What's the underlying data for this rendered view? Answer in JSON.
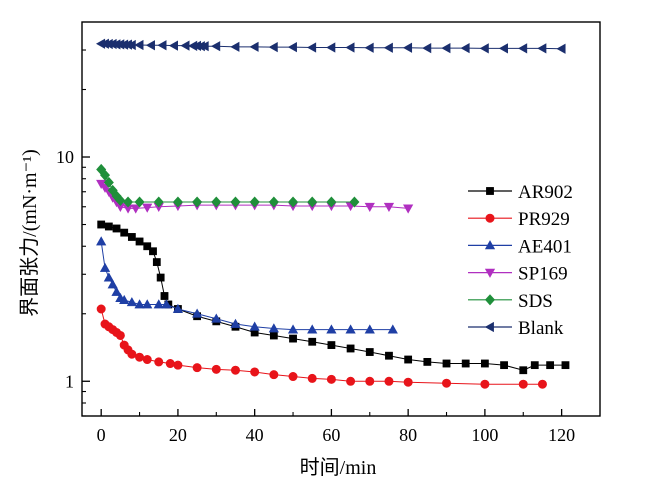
{
  "chart_data": {
    "type": "scatter",
    "title": "",
    "xlabel": "时间/min",
    "ylabel": "界面张力/(mN·m⁻¹)",
    "xlim": [
      -5,
      130
    ],
    "ylim": [
      0.7,
      40
    ],
    "yscale": "log",
    "x_ticks": [
      0,
      20,
      40,
      60,
      80,
      100,
      120
    ],
    "x_tick_labels": [
      "0",
      "20",
      "40",
      "60",
      "80",
      "100",
      "120"
    ],
    "y_ticks": [
      1,
      10
    ],
    "y_tick_labels": [
      "1",
      "10"
    ],
    "grid": false,
    "legend_position": "right",
    "series": [
      {
        "name": "AR902",
        "color": "#000000",
        "marker": "square",
        "points": [
          [
            0,
            5.0
          ],
          [
            2,
            4.9
          ],
          [
            4,
            4.8
          ],
          [
            6,
            4.6
          ],
          [
            8,
            4.4
          ],
          [
            10,
            4.2
          ],
          [
            12,
            4.0
          ],
          [
            13.5,
            3.8
          ],
          [
            14.5,
            3.4
          ],
          [
            15.5,
            2.9
          ],
          [
            16.5,
            2.4
          ],
          [
            17.5,
            2.2
          ],
          [
            20,
            2.1
          ],
          [
            25,
            1.95
          ],
          [
            30,
            1.85
          ],
          [
            35,
            1.75
          ],
          [
            40,
            1.65
          ],
          [
            45,
            1.6
          ],
          [
            50,
            1.55
          ],
          [
            55,
            1.5
          ],
          [
            60,
            1.45
          ],
          [
            65,
            1.4
          ],
          [
            70,
            1.35
          ],
          [
            75,
            1.3
          ],
          [
            80,
            1.25
          ],
          [
            85,
            1.22
          ],
          [
            90,
            1.2
          ],
          [
            95,
            1.2
          ],
          [
            100,
            1.2
          ],
          [
            105,
            1.18
          ],
          [
            110,
            1.12
          ],
          [
            113,
            1.18
          ],
          [
            117,
            1.18
          ],
          [
            121,
            1.18
          ]
        ]
      },
      {
        "name": "PR929",
        "color": "#e8141a",
        "marker": "circle",
        "points": [
          [
            0,
            2.1
          ],
          [
            1,
            1.8
          ],
          [
            2,
            1.75
          ],
          [
            3,
            1.7
          ],
          [
            4,
            1.65
          ],
          [
            5,
            1.6
          ],
          [
            6,
            1.45
          ],
          [
            7,
            1.38
          ],
          [
            8,
            1.32
          ],
          [
            10,
            1.28
          ],
          [
            12,
            1.25
          ],
          [
            15,
            1.22
          ],
          [
            18,
            1.2
          ],
          [
            20,
            1.18
          ],
          [
            25,
            1.15
          ],
          [
            30,
            1.13
          ],
          [
            35,
            1.12
          ],
          [
            40,
            1.1
          ],
          [
            45,
            1.07
          ],
          [
            50,
            1.05
          ],
          [
            55,
            1.03
          ],
          [
            60,
            1.02
          ],
          [
            65,
            1.0
          ],
          [
            70,
            1.0
          ],
          [
            75,
            1.0
          ],
          [
            80,
            0.99
          ],
          [
            90,
            0.98
          ],
          [
            100,
            0.97
          ],
          [
            110,
            0.97
          ],
          [
            115,
            0.97
          ]
        ]
      },
      {
        "name": "AE401",
        "color": "#1f3fa5",
        "marker": "triangle-up",
        "points": [
          [
            0,
            4.2
          ],
          [
            1,
            3.2
          ],
          [
            2,
            2.9
          ],
          [
            3,
            2.7
          ],
          [
            4,
            2.5
          ],
          [
            5,
            2.35
          ],
          [
            6,
            2.3
          ],
          [
            8,
            2.25
          ],
          [
            10,
            2.2
          ],
          [
            12,
            2.2
          ],
          [
            15,
            2.2
          ],
          [
            17,
            2.2
          ],
          [
            20,
            2.1
          ],
          [
            25,
            2.0
          ],
          [
            30,
            1.9
          ],
          [
            35,
            1.8
          ],
          [
            40,
            1.75
          ],
          [
            45,
            1.72
          ],
          [
            50,
            1.7
          ],
          [
            55,
            1.7
          ],
          [
            60,
            1.7
          ],
          [
            65,
            1.7
          ],
          [
            70,
            1.7
          ],
          [
            76,
            1.7
          ]
        ]
      },
      {
        "name": "SP169",
        "color": "#b02fc0",
        "marker": "triangle-down",
        "points": [
          [
            0,
            7.6
          ],
          [
            1,
            7.3
          ],
          [
            2,
            7.0
          ],
          [
            3,
            6.6
          ],
          [
            4,
            6.3
          ],
          [
            5,
            6.0
          ],
          [
            7,
            5.9
          ],
          [
            9,
            5.9
          ],
          [
            12,
            5.95
          ],
          [
            15,
            6.0
          ],
          [
            20,
            6.05
          ],
          [
            25,
            6.1
          ],
          [
            30,
            6.1
          ],
          [
            35,
            6.1
          ],
          [
            40,
            6.1
          ],
          [
            45,
            6.1
          ],
          [
            50,
            6.05
          ],
          [
            55,
            6.05
          ],
          [
            60,
            6.05
          ],
          [
            65,
            6.05
          ],
          [
            70,
            6.0
          ],
          [
            75,
            6.0
          ],
          [
            80,
            5.9
          ]
        ]
      },
      {
        "name": "SDS",
        "color": "#1f8f3a",
        "marker": "diamond",
        "points": [
          [
            0,
            8.8
          ],
          [
            1,
            8.3
          ],
          [
            2,
            7.7
          ],
          [
            3,
            7.1
          ],
          [
            4,
            6.7
          ],
          [
            5,
            6.4
          ],
          [
            7,
            6.3
          ],
          [
            10,
            6.3
          ],
          [
            15,
            6.3
          ],
          [
            20,
            6.3
          ],
          [
            25,
            6.3
          ],
          [
            30,
            6.3
          ],
          [
            35,
            6.3
          ],
          [
            40,
            6.3
          ],
          [
            45,
            6.3
          ],
          [
            50,
            6.3
          ],
          [
            55,
            6.3
          ],
          [
            60,
            6.3
          ],
          [
            66,
            6.3
          ]
        ]
      },
      {
        "name": "Blank",
        "color": "#1b2f6e",
        "marker": "triangle-left",
        "points": [
          [
            0,
            32.0
          ],
          [
            1,
            32.0
          ],
          [
            2,
            31.9
          ],
          [
            3,
            31.9
          ],
          [
            4,
            31.8
          ],
          [
            5,
            31.8
          ],
          [
            6,
            31.7
          ],
          [
            7,
            31.7
          ],
          [
            8,
            31.6
          ],
          [
            10,
            31.6
          ],
          [
            13,
            31.5
          ],
          [
            16,
            31.5
          ],
          [
            19,
            31.4
          ],
          [
            22,
            31.4
          ],
          [
            24,
            31.3
          ],
          [
            25,
            31.3
          ],
          [
            26,
            31.2
          ],
          [
            27,
            31.2
          ],
          [
            30,
            31.2
          ],
          [
            35,
            31.0
          ],
          [
            40,
            31.0
          ],
          [
            45,
            30.9
          ],
          [
            50,
            30.9
          ],
          [
            55,
            30.8
          ],
          [
            60,
            30.8
          ],
          [
            65,
            30.8
          ],
          [
            70,
            30.7
          ],
          [
            75,
            30.7
          ],
          [
            80,
            30.7
          ],
          [
            85,
            30.6
          ],
          [
            90,
            30.6
          ],
          [
            95,
            30.6
          ],
          [
            100,
            30.5
          ],
          [
            105,
            30.5
          ],
          [
            110,
            30.5
          ],
          [
            115,
            30.5
          ],
          [
            120,
            30.4
          ]
        ]
      }
    ]
  }
}
